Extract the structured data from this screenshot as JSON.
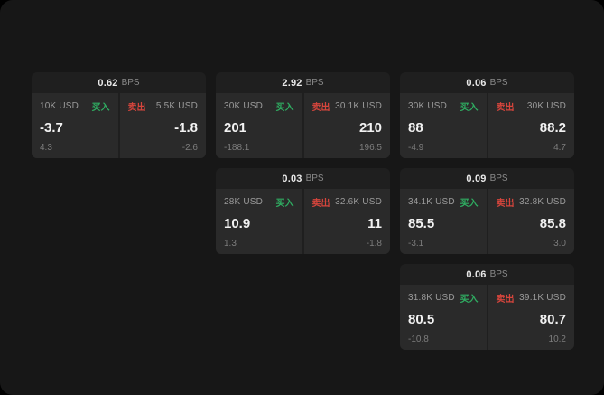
{
  "cards": [
    {
      "bps": "0.62",
      "unit": "BPS",
      "buy": {
        "amount": "10K USD",
        "label": "买入",
        "price": "-3.7",
        "delta": "4.3"
      },
      "sell": {
        "amount": "5.5K USD",
        "label": "卖出",
        "price": "-1.8",
        "delta": "-2.6"
      }
    },
    {
      "bps": "2.92",
      "unit": "BPS",
      "buy": {
        "amount": "30K USD",
        "label": "买入",
        "price": "201",
        "delta": "-188.1"
      },
      "sell": {
        "amount": "30.1K USD",
        "label": "卖出",
        "price": "210",
        "delta": "196.5"
      }
    },
    {
      "bps": "0.06",
      "unit": "BPS",
      "buy": {
        "amount": "30K USD",
        "label": "买入",
        "price": "88",
        "delta": "-4.9"
      },
      "sell": {
        "amount": "30K USD",
        "label": "卖出",
        "price": "88.2",
        "delta": "4.7"
      }
    },
    {
      "bps": "0.03",
      "unit": "BPS",
      "buy": {
        "amount": "28K USD",
        "label": "买入",
        "price": "10.9",
        "delta": "1.3"
      },
      "sell": {
        "amount": "32.6K USD",
        "label": "卖出",
        "price": "11",
        "delta": "-1.8"
      }
    },
    {
      "bps": "0.09",
      "unit": "BPS",
      "buy": {
        "amount": "34.1K USD",
        "label": "买入",
        "price": "85.5",
        "delta": "-3.1"
      },
      "sell": {
        "amount": "32.8K USD",
        "label": "卖出",
        "price": "85.8",
        "delta": "3.0"
      }
    },
    {
      "bps": "0.06",
      "unit": "BPS",
      "buy": {
        "amount": "31.8K USD",
        "label": "买入",
        "price": "80.5",
        "delta": "-10.8"
      },
      "sell": {
        "amount": "39.1K USD",
        "label": "卖出",
        "price": "80.7",
        "delta": "10.2"
      }
    }
  ]
}
